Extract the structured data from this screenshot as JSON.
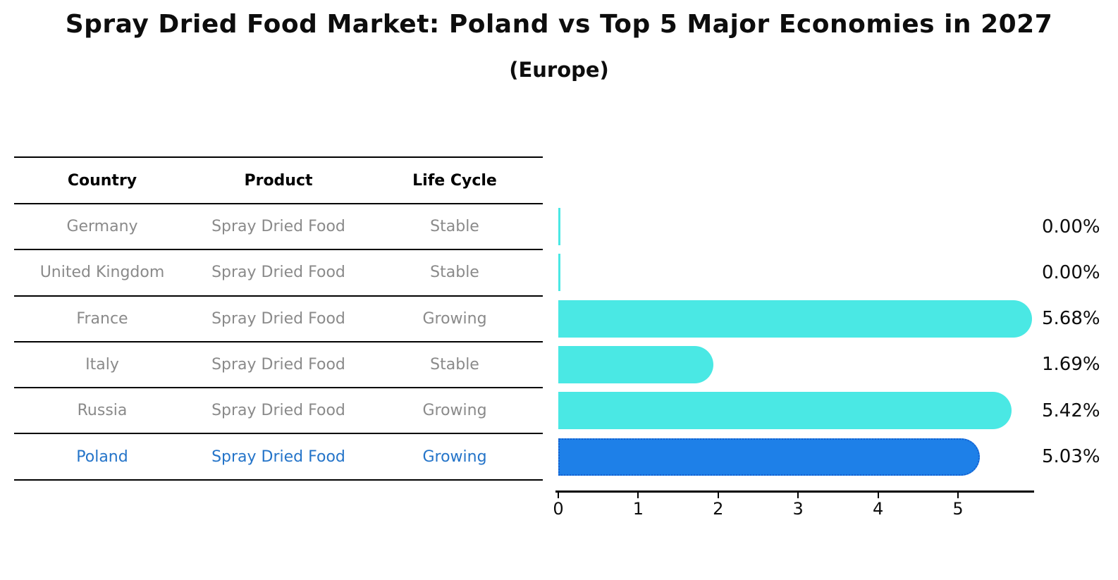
{
  "title": "Spray Dried Food Market: Poland vs Top 5 Major Economies in 2027",
  "subtitle": "(Europe)",
  "table": {
    "headers": [
      "Country",
      "Product",
      "Life Cycle"
    ],
    "rows": [
      {
        "country": "Germany",
        "product": "Spray Dried Food",
        "life_cycle": "Stable",
        "highlight": false
      },
      {
        "country": "United Kingdom",
        "product": "Spray Dried Food",
        "life_cycle": "Stable",
        "highlight": false
      },
      {
        "country": "France",
        "product": "Spray Dried Food",
        "life_cycle": "Growing",
        "highlight": false
      },
      {
        "country": "Italy",
        "product": "Spray Dried Food",
        "life_cycle": "Stable",
        "highlight": false
      },
      {
        "country": "Russia",
        "product": "Spray Dried Food",
        "life_cycle": "Growing",
        "highlight": true
      },
      {
        "country": "Poland",
        "product": "Spray Dried Food",
        "life_cycle": "Growing",
        "highlight": true
      }
    ]
  },
  "chart_data": {
    "type": "bar",
    "orientation": "horizontal",
    "title": "Spray Dried Food Market: Poland vs Top 5 Major Economies in 2027",
    "subtitle": "(Europe)",
    "categories": [
      "Germany",
      "United Kingdom",
      "France",
      "Italy",
      "Russia",
      "Poland"
    ],
    "values": [
      0.0,
      0.0,
      5.68,
      1.69,
      5.42,
      5.03
    ],
    "value_labels": [
      "0.00%",
      "0.00%",
      "5.68%",
      "1.69%",
      "5.42%",
      "5.03%"
    ],
    "xlabel": "",
    "ylabel": "",
    "xticks": [
      0,
      1,
      2,
      3,
      4,
      5
    ],
    "xlim": [
      0,
      5.95
    ],
    "grid": false,
    "legend": "none",
    "bar_color": "#4ae8e4",
    "highlight_color": "#1e80e8",
    "highlight_border_color": "#1560d0",
    "highlight_index": 5,
    "highlight_category": "Poland",
    "highlight_text_color": "#2474c9"
  }
}
